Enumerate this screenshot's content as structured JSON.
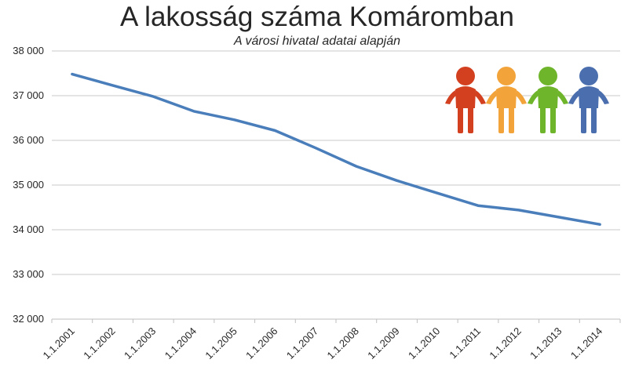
{
  "chart_data": {
    "type": "line",
    "title": "A lakosság száma Komáromban",
    "subtitle": "A városi hivatal adatai alapján",
    "xlabel": "",
    "ylabel": "",
    "categories": [
      "1.1.2001",
      "1.1.2002",
      "1.1.2003",
      "1.1.2004",
      "1.1.2005",
      "1.1.2006",
      "1.1.2007",
      "1.1.2008",
      "1.1.2009",
      "1.1.2010",
      "1.1.2011",
      "1.1.2012",
      "1.1.2013",
      "1.1.2014"
    ],
    "series": [
      {
        "color": "#4a7ebb",
        "values": [
          37480,
          37230,
          36980,
          36650,
          36460,
          36220,
          35830,
          35420,
          35100,
          34820,
          34540,
          34440,
          34280,
          34120
        ]
      }
    ],
    "ylim": [
      32000,
      38000
    ],
    "yticks": [
      32000,
      33000,
      34000,
      35000,
      36000,
      37000,
      38000
    ],
    "ytick_labels": [
      "32 000",
      "33 000",
      "34 000",
      "35 000",
      "36 000",
      "37 000",
      "38 000"
    ],
    "grid": true,
    "legend": "none"
  },
  "decoration": {
    "people_icons": [
      {
        "name": "person-red-icon",
        "color": "#d2401f"
      },
      {
        "name": "person-orange-icon",
        "color": "#f2a33a"
      },
      {
        "name": "person-green-icon",
        "color": "#6fb52c"
      },
      {
        "name": "person-blue-icon",
        "color": "#4b6fae"
      }
    ]
  }
}
